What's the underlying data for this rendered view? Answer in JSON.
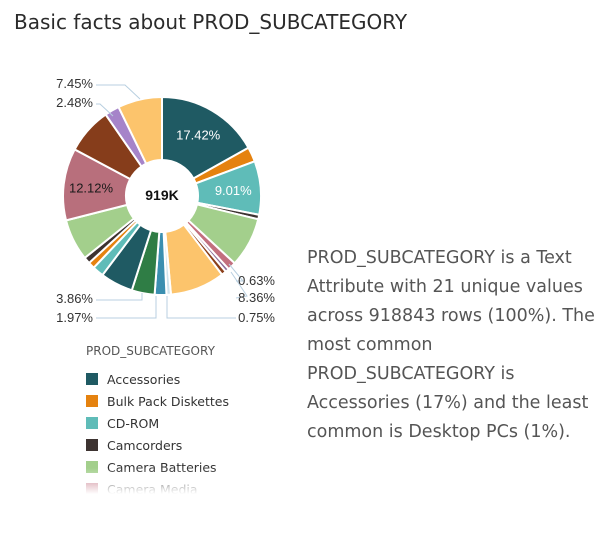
{
  "header": {
    "title": "Basic facts about PROD_SUBCATEGORY"
  },
  "center_label": "919K",
  "description": "PROD_SUBCATEGORY is a Text Attribute with 21 unique values across 918843 rows (100%). The most common PROD_SUBCATEGORY is Accessories (17%) and the least common is Desktop PCs (1%).",
  "legend": {
    "title": "PROD_SUBCATEGORY",
    "items": [
      {
        "label": "Accessories",
        "color": "#1f5a63"
      },
      {
        "label": "Bulk Pack Diskettes",
        "color": "#e5820f"
      },
      {
        "label": "CD-ROM",
        "color": "#5fbcb8"
      },
      {
        "label": "Camcorders",
        "color": "#3d3331"
      },
      {
        "label": "Camera Batteries",
        "color": "#a3cf8c"
      },
      {
        "label": "Camera Media",
        "color": "#c26f7e"
      }
    ]
  },
  "chart_data": {
    "type": "pie",
    "hole_label": "919K",
    "start_angle_deg": 0,
    "slices": [
      {
        "value": 17.42,
        "color": "#1f5a63",
        "label": "17.42%",
        "label_inside": true
      },
      {
        "value": 2.48,
        "color": "#e5820f"
      },
      {
        "value": 9.01,
        "color": "#5fbcb8",
        "label": "9.01%",
        "label_inside": true
      },
      {
        "value": 0.75,
        "color": "#3d3331"
      },
      {
        "value": 8.36,
        "color": "#a3cf8c",
        "label": "8.36%"
      },
      {
        "value": 1.4,
        "color": "#c26f7e"
      },
      {
        "value": 0.63,
        "color": "#8c6d9a",
        "label": "0.63%"
      },
      {
        "value": 0.8,
        "color": "#8b3f1a"
      },
      {
        "value": 9.2,
        "color": "#fcc46c"
      },
      {
        "value": 0.75,
        "color": "#cfe4ee",
        "label": "0.75%"
      },
      {
        "value": 1.97,
        "color": "#3b8fb0",
        "label": "1.97%"
      },
      {
        "value": 3.86,
        "color": "#2f7d45",
        "label": "3.86%"
      },
      {
        "value": 5.5,
        "color": "#1f5a63"
      },
      {
        "value": 1.9,
        "color": "#5fbcb8"
      },
      {
        "value": 1.1,
        "color": "#e5820f"
      },
      {
        "value": 1.1,
        "color": "#3d3331"
      },
      {
        "value": 7.0,
        "color": "#a3cf8c"
      },
      {
        "value": 12.12,
        "color": "#b86f7c",
        "label": "12.12%",
        "label_inside": true
      },
      {
        "value": 7.8,
        "color": "#863d1b"
      },
      {
        "value": 2.48,
        "color": "#a684c9",
        "label": "2.48%"
      },
      {
        "value": 7.45,
        "color": "#fcc46c",
        "label": "7.45%"
      }
    ]
  }
}
